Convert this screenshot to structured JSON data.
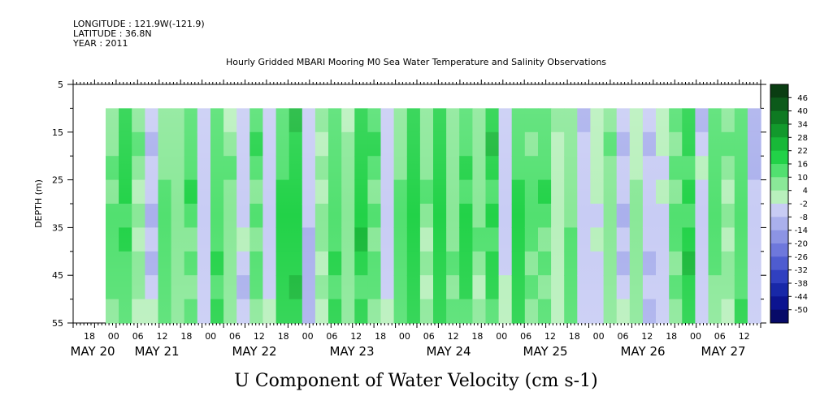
{
  "header": {
    "longitude": "LONGITUDE : 121.9W(-121.9)",
    "latitude": "LATITUDE : 36.8N",
    "year": "YEAR : 2011",
    "title": "Hourly Gridded MBARI Mooring M0 Sea Water Temperature and Salinity Observations"
  },
  "chart_data": {
    "type": "heatmap",
    "title": "Hourly Gridded MBARI Mooring M0 Sea Water Temperature and Salinity Observations",
    "xlabel": "U Component of Water Velocity (cm s-1)",
    "ylabel": "DEPTH (m)",
    "y_reversed": true,
    "ylim": [
      5,
      55
    ],
    "y_ticks": [
      "5",
      "15",
      "25",
      "35",
      "45",
      "55"
    ],
    "data_depth_range": [
      10,
      55
    ],
    "x_hour_labels": [
      "18",
      "00",
      "06",
      "12",
      "18",
      "00",
      "06",
      "12",
      "18",
      "00",
      "06",
      "12",
      "18",
      "00",
      "06",
      "12",
      "18",
      "00",
      "06",
      "12",
      "18",
      "00",
      "06",
      "12",
      "18",
      "00",
      "06",
      "12"
    ],
    "x_date_labels": [
      "MAY 20",
      "MAY 21",
      "MAY 22",
      "MAY 23",
      "MAY 24",
      "MAY 25",
      "MAY 26",
      "MAY 27"
    ],
    "colorbar": {
      "levels": [
        "46",
        "40",
        "34",
        "28",
        "22",
        "16",
        "10",
        "4",
        "-2",
        "-8",
        "-14",
        "-20",
        "-26",
        "-32",
        "-38",
        "-44",
        "-50"
      ],
      "colors": [
        "#0a3d12",
        "#0c5a1a",
        "#0e7a22",
        "#12992c",
        "#18b838",
        "#22d248",
        "#52e070",
        "#8ae898",
        "#b8f0bc",
        "#c8ccf4",
        "#aab0ec",
        "#8c94e4",
        "#6e78dc",
        "#4e5cd0",
        "#3040c0",
        "#1828a8",
        "#0c1490",
        "#070a68"
      ]
    },
    "time_profile": [
      {
        "t": 0.0,
        "u": 8
      },
      {
        "t": 0.02,
        "u": 14
      },
      {
        "t": 0.04,
        "u": 6
      },
      {
        "t": 0.06,
        "u": -6
      },
      {
        "t": 0.08,
        "u": 10
      },
      {
        "t": 0.1,
        "u": 4
      },
      {
        "t": 0.12,
        "u": 12
      },
      {
        "t": 0.14,
        "u": -4
      },
      {
        "t": 0.16,
        "u": 14
      },
      {
        "t": 0.18,
        "u": 6
      },
      {
        "t": 0.2,
        "u": -6
      },
      {
        "t": 0.22,
        "u": 12
      },
      {
        "t": 0.24,
        "u": -4
      },
      {
        "t": 0.26,
        "u": 16
      },
      {
        "t": 0.28,
        "u": 18
      },
      {
        "t": 0.3,
        "u": -8
      },
      {
        "t": 0.32,
        "u": 6
      },
      {
        "t": 0.34,
        "u": 14
      },
      {
        "t": 0.36,
        "u": 4
      },
      {
        "t": 0.38,
        "u": 18
      },
      {
        "t": 0.4,
        "u": 12
      },
      {
        "t": 0.42,
        "u": -4
      },
      {
        "t": 0.44,
        "u": 10
      },
      {
        "t": 0.46,
        "u": 16
      },
      {
        "t": 0.48,
        "u": 6
      },
      {
        "t": 0.5,
        "u": 20
      },
      {
        "t": 0.52,
        "u": 8
      },
      {
        "t": 0.54,
        "u": 14
      },
      {
        "t": 0.56,
        "u": 6
      },
      {
        "t": 0.58,
        "u": 18
      },
      {
        "t": 0.6,
        "u": -2
      },
      {
        "t": 0.62,
        "u": 16
      },
      {
        "t": 0.64,
        "u": 8
      },
      {
        "t": 0.66,
        "u": 12
      },
      {
        "t": 0.68,
        "u": 4
      },
      {
        "t": 0.7,
        "u": 10
      },
      {
        "t": 0.72,
        "u": -8
      },
      {
        "t": 0.74,
        "u": -4
      },
      {
        "t": 0.76,
        "u": 8
      },
      {
        "t": 0.78,
        "u": -6
      },
      {
        "t": 0.8,
        "u": 4
      },
      {
        "t": 0.82,
        "u": -10
      },
      {
        "t": 0.84,
        "u": -4
      },
      {
        "t": 0.86,
        "u": 12
      },
      {
        "t": 0.88,
        "u": 18
      },
      {
        "t": 0.9,
        "u": -6
      },
      {
        "t": 0.92,
        "u": 10
      },
      {
        "t": 0.94,
        "u": 6
      },
      {
        "t": 0.96,
        "u": 14
      },
      {
        "t": 0.98,
        "u": -8
      },
      {
        "t": 1.0,
        "u": -12
      }
    ]
  }
}
